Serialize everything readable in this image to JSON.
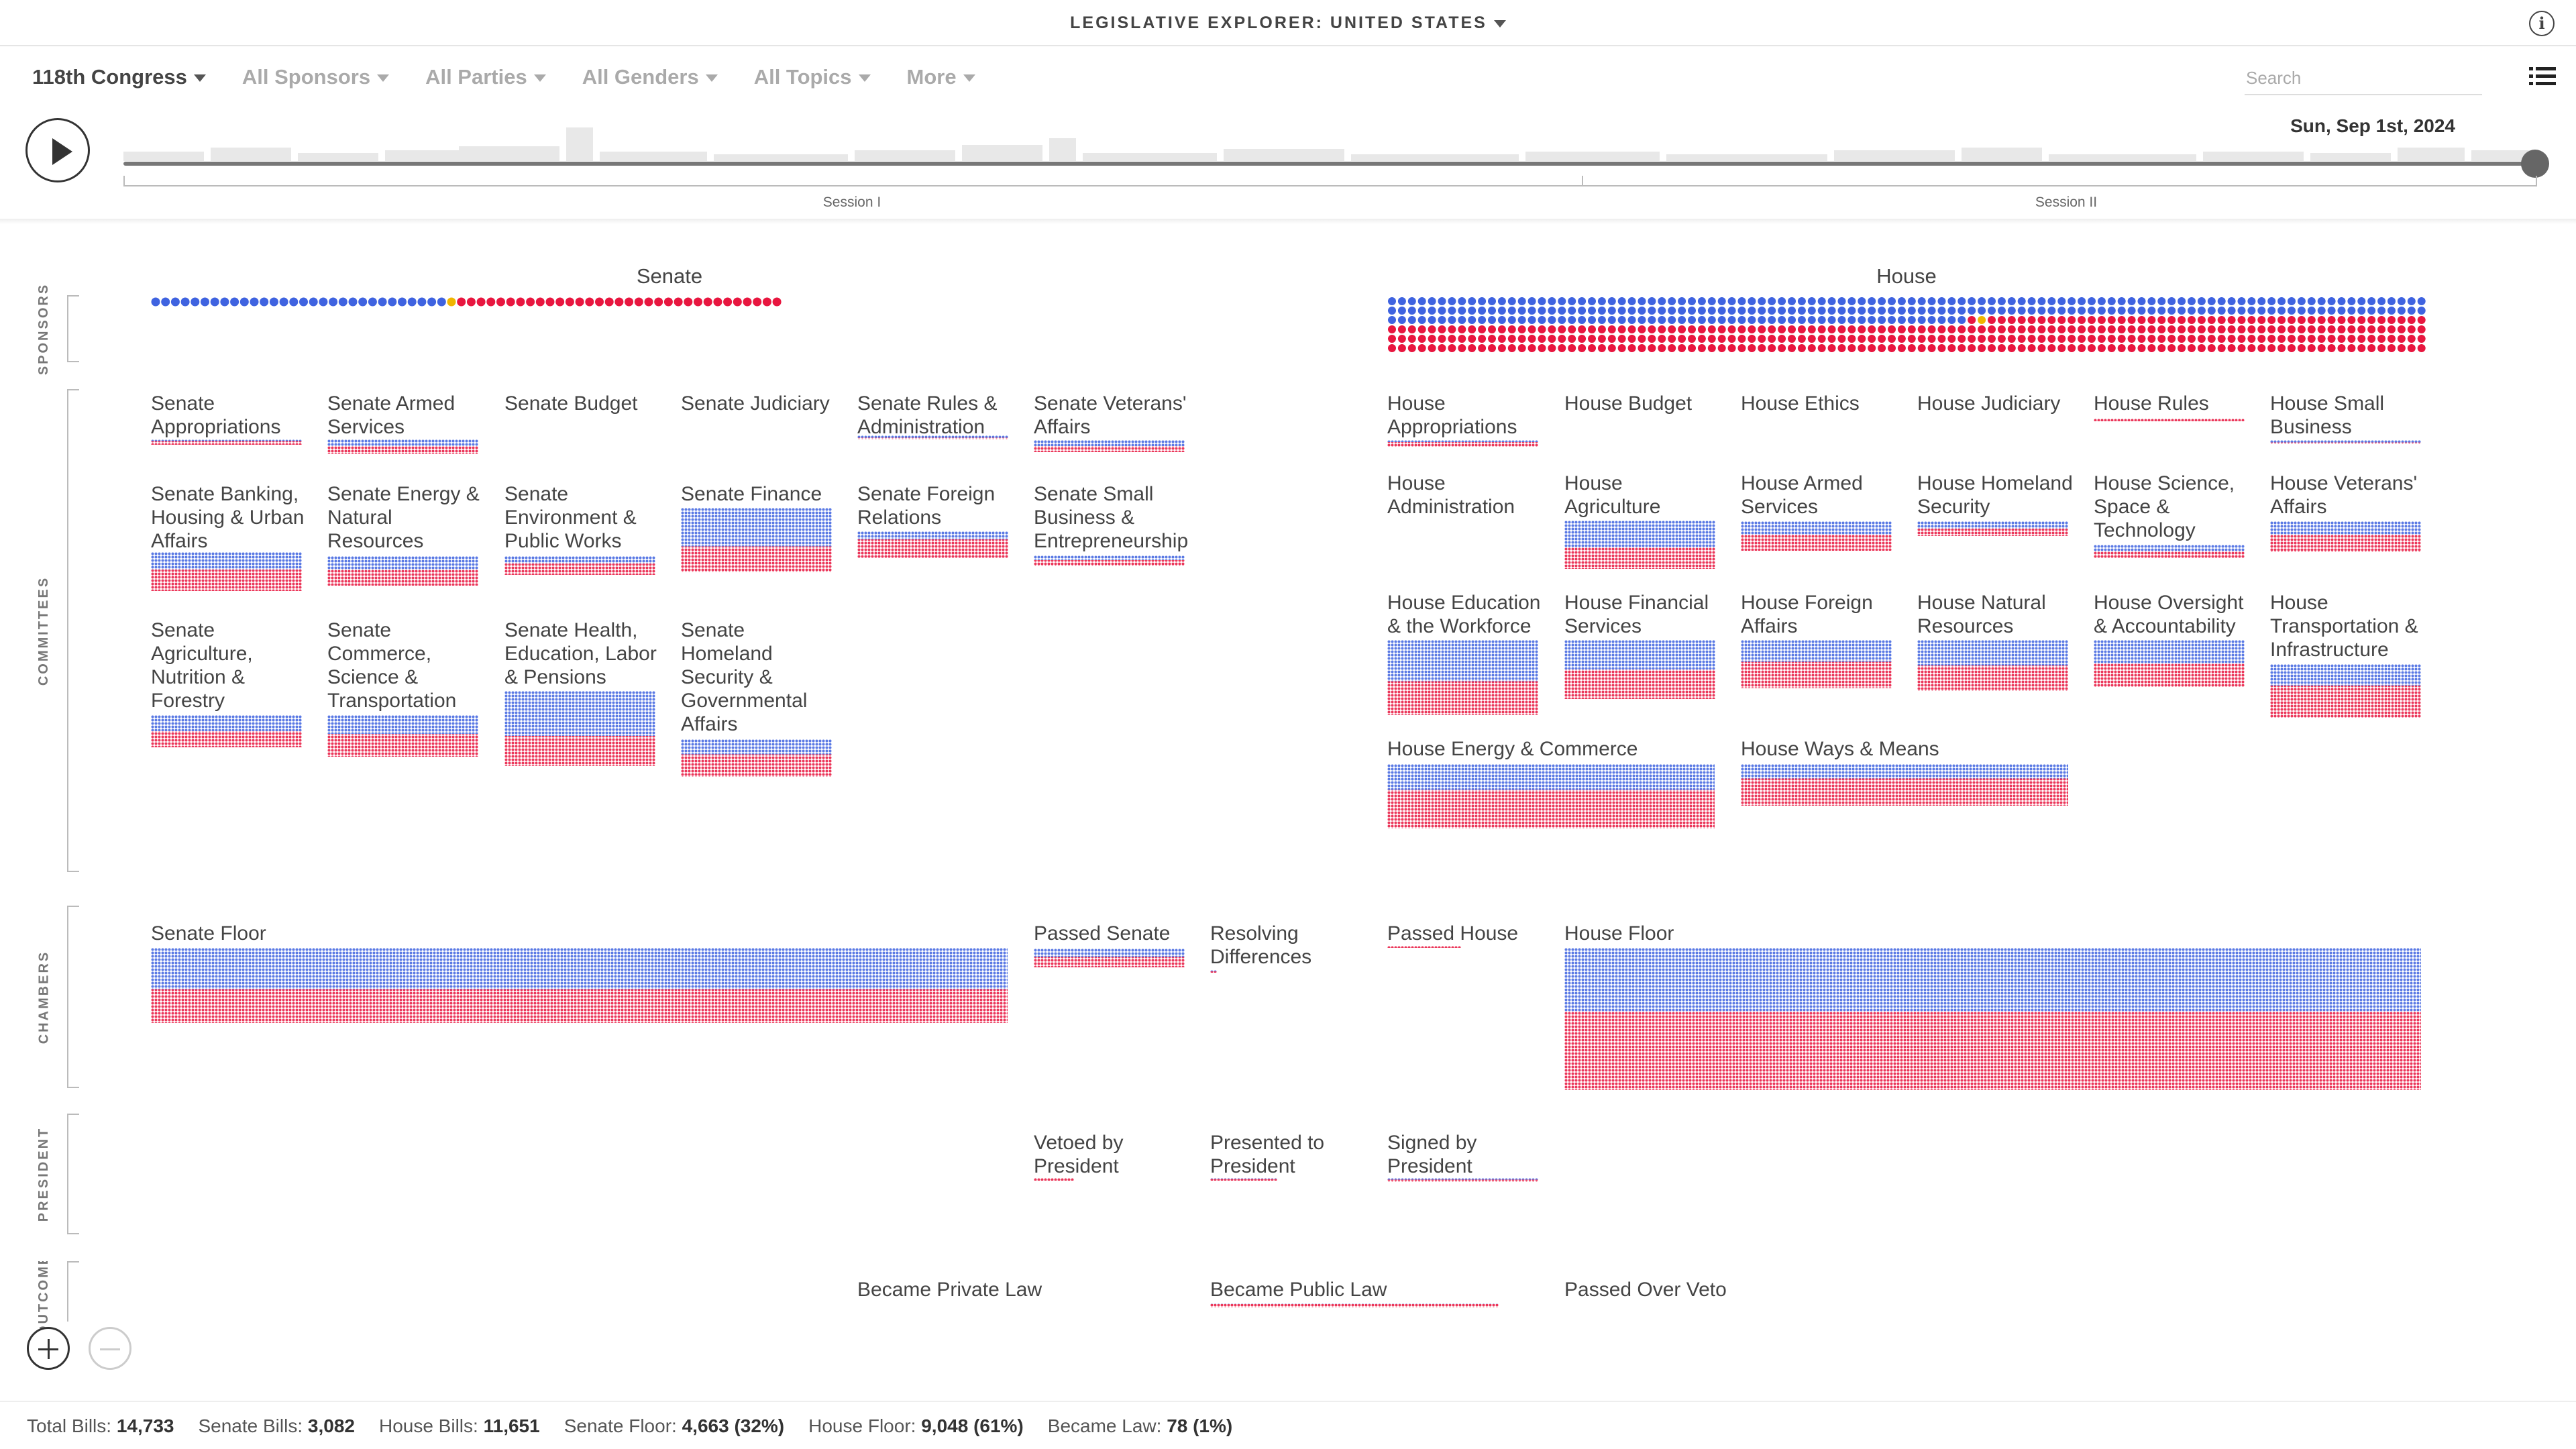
{
  "header": {
    "title": "LEGISLATIVE EXPLORER: UNITED STATES"
  },
  "filters": [
    {
      "label": "118th Congress",
      "active": true
    },
    {
      "label": "All Sponsors",
      "active": false
    },
    {
      "label": "All Parties",
      "active": false
    },
    {
      "label": "All Genders",
      "active": false
    },
    {
      "label": "All Topics",
      "active": false
    },
    {
      "label": "More",
      "active": false
    }
  ],
  "search": {
    "placeholder": "Search"
  },
  "timeline": {
    "date": "Sun, Sep 1st, 2024",
    "session1": "Session I",
    "session2": "Session II",
    "progress": 1.0
  },
  "rows": {
    "sponsors": "SPONSORS",
    "committees": "COMMITTEES",
    "chambers": "CHAMBERS",
    "president": "PRESIDENT",
    "outcome": "OUTCOME"
  },
  "senate": {
    "title": "Senate",
    "committees": [
      "Senate Appropriations",
      "Senate Armed Services",
      "Senate Budget",
      "Senate Judiciary",
      "Senate Rules & Administration",
      "Senate Veterans' Affairs",
      "Senate Banking, Housing & Urban Affairs",
      "Senate Energy & Natural Resources",
      "Senate Environment & Public Works",
      "Senate Finance",
      "Senate Foreign Relations",
      "Senate Small Business & Entrepreneurship",
      "Senate Agriculture, Nutrition & Forestry",
      "Senate Commerce, Science & Transportation",
      "Senate Health, Education, Labor & Pensions",
      "Senate Homeland Security & Governmental Affairs"
    ],
    "floor": "Senate Floor",
    "passed": "Passed Senate"
  },
  "house": {
    "title": "House",
    "committees": [
      "House Appropriations",
      "House Budget",
      "House Ethics",
      "House Judiciary",
      "House Rules",
      "House Small Business",
      "House Administration",
      "House Agriculture",
      "House Armed Services",
      "House Homeland Security",
      "House Science, Space & Technology",
      "House Veterans' Affairs",
      "House Education & the Workforce",
      "House Financial Services",
      "House Foreign Affairs",
      "House Natural Resources",
      "House Oversight & Accountability",
      "House Transportation & Infrastructure",
      "House Energy & Commerce",
      "House Ways & Means"
    ],
    "floor": "House Floor",
    "passed": "Passed House"
  },
  "stages": {
    "resolving": "Resolving Differences",
    "vetoed": "Vetoed by President",
    "presented": "Presented to President",
    "signed": "Signed by President",
    "private_law": "Became Private Law",
    "public_law": "Became Public Law",
    "over_veto": "Passed Over Veto"
  },
  "stats": [
    {
      "label": "Total Bills:",
      "value": "14,733"
    },
    {
      "label": "Senate Bills:",
      "value": "3,082"
    },
    {
      "label": "House Bills:",
      "value": "11,651"
    },
    {
      "label": "Senate Floor:",
      "value": "4,663 (32%)"
    },
    {
      "label": "House Floor:",
      "value": "9,048 (61%)"
    },
    {
      "label": "Became Law:",
      "value": "78 (1%)"
    }
  ],
  "colors": {
    "democrat": "#3f63e0",
    "republican": "#e8163f",
    "independent": "#f0b500",
    "text": "#444444"
  }
}
